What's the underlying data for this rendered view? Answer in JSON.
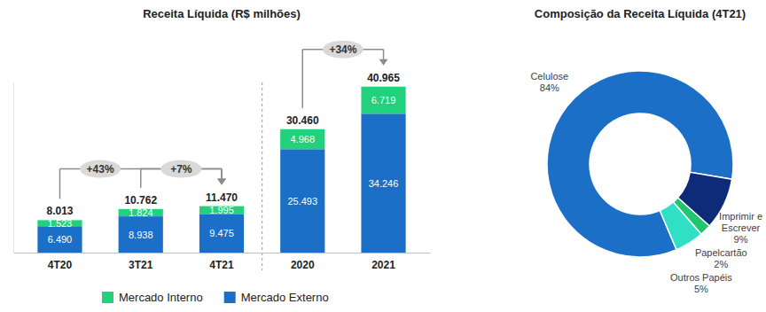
{
  "chart_data": [
    {
      "type": "bar",
      "title": "Receita Líquida (R$ milhões)",
      "categories": [
        "4T20",
        "3T21",
        "4T21",
        "2020",
        "2021"
      ],
      "series": [
        {
          "name": "Mercado Interno",
          "color": "#22d17b",
          "values": [
            1523,
            1824,
            1995,
            4968,
            6719
          ],
          "value_labels": [
            "1.523",
            "1.824",
            "1.995",
            "4.968",
            "6.719"
          ]
        },
        {
          "name": "Mercado Externo",
          "color": "#1b6fc6",
          "values": [
            6490,
            8938,
            9475,
            25493,
            34246
          ],
          "value_labels": [
            "6.490",
            "8.938",
            "9.475",
            "25.493",
            "34.246"
          ]
        }
      ],
      "total_labels": [
        "8.013",
        "10.762",
        "11.470",
        "30.460",
        "40.965"
      ],
      "annotations": [
        {
          "text": "+43%",
          "from": "4T20",
          "to": "4T21"
        },
        {
          "text": "+7%",
          "from": "3T21",
          "to": "4T21"
        },
        {
          "text": "+34%",
          "from": "2020",
          "to": "2021"
        }
      ],
      "stacked": true,
      "data_labels": true,
      "tick_labels": "x",
      "legend": "bottom",
      "ylim": [
        0,
        42000
      ],
      "yticks": []
    },
    {
      "type": "pie",
      "title": "Composição da Receita Líquida (4T21)",
      "categories": [
        "Celulose",
        "Imprimir e Escrever",
        "Papelcartão",
        "Outros Papéis"
      ],
      "values": [
        84,
        9,
        2,
        5
      ],
      "value_labels": [
        "84%",
        "9%",
        "2%",
        "5%"
      ],
      "colors": [
        "#1b6fc6",
        "#0d2b78",
        "#22c46e",
        "#2fe0c4"
      ],
      "data_labels": true
    }
  ]
}
